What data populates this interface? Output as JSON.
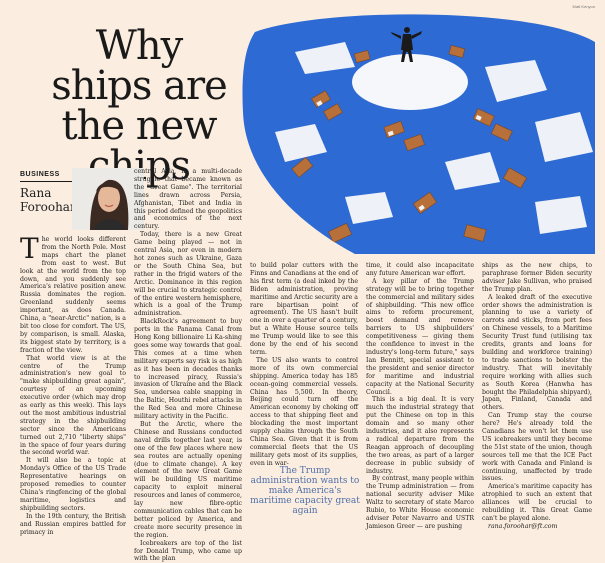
{
  "credit": "Matt Kenyon",
  "headline": "Why ships are the new chips",
  "section": "BUSINESS",
  "author": "Rana Foroohar",
  "illustration_icon": "ships-illustration",
  "colors": {
    "background": "#fbeee0",
    "quote": "#4f6ea8",
    "sea": "#2e6ad3"
  },
  "pull_quote": "The Trump administration wants to make America's maritime capacity great again",
  "col1": {
    "drop_cap": "T",
    "paragraphs": [
      "he world looks different from the North Pole. Most maps chart the planet from east to west. But look at the world from the top down, and you suddenly see America's relative position anew. Russia dominates the region. Greenland suddenly seems important, as does Canada. China, a \"near-Arctic\" nation, is a bit too close for comfort. The US, by comparison, is small. Alaska, its biggest state by territory, is a fraction of the view.",
      "That world view is at the centre of the Trump administration's new goal to \"make shipbuilding great again\", courtesy of an upcoming executive order (which may drop as early as this week). This lays out the most ambitious industrial strategy in the shipbuilding sector since the Americans turned out 2,710 \"liberty ships\" in the space of four years during the second world war.",
      "It will also be a topic at Monday's Office of the US Trade Representative hearings on proposed remedies to counter China's ringfencing of the global maritime, logistics and shipbuilding sectors.",
      "In the 19th century, the British and Russian empires battled for primacy in"
    ]
  },
  "col2": {
    "paragraphs": [
      "central Asia, in a multi-decade struggle that became known as the \"Great Game\". The territorial lines drawn across Persia, Afghanistan, Tibet and India in this period defined the geopolitics and economics of the next century.",
      "Today, there is a new Great Game being played — not in central Asia, nor even in modern hot zones such as Ukraine, Gaza or the South China Sea, but rather in the frigid waters of the Arctic. Dominance in this region will be crucial to strategic control of the entire western hemisphere, which is a goal of the Trump administration.",
      "BlackRock's agreement to buy ports in the Panama Canal from Hong Kong billionaire Li Ka-shing goes some way towards that goal. This comes at a time when military experts say risk is as high as it has been in decades thanks to increased piracy, Russia's invasion of Ukraine and the Black Sea, undersea cable snapping in the Baltic, Houthi rebel attacks in the Red Sea and more Chinese military activity in the Pacific.",
      "But the Arctic, where the Chinese and Russians conducted naval drills together last year, is one of the few places where new sea routes are actually opening (due to climate change). A key element of the new Great Game will be building US maritime capacity to exploit mineral resources and lanes of commerce, lay new fibre-optic communication cables that can be better policed by America, and create more security presence in the region.",
      "Icebreakers are top of the list for Donald Trump, who came up with the plan"
    ]
  },
  "col3": {
    "paragraphs": [
      "to build polar cutters with the Finns and Canadians at the end of his first term (a deal inked by the Biden administration, proving maritime and Arctic security are a rare bipartisan point of agreement). The US hasn't built one in over a quarter of a century, but a White House source tells me Trump would like to see this done by the end of his second term.",
      "The US also wants to control more of its own commercial shipping. America today has 185 ocean-going commercial vessels. China has 5,500. In theory, Beijing could turn off the American economy by choking off access to that shipping fleet and blockading the most important supply chains through the South China Sea. Given that it is from commercial fleets that the US military gets most of its supplies, even in war-"
    ]
  },
  "col4": {
    "paragraphs": [
      "time, it could also incapacitate any future American war effort.",
      "A key pillar of the Trump strategy will be to bring together the commercial and military sides of shipbuilding. \"This new office aims to reform procurement, boost demand and remove barriers to US shipbuilders' competitiveness — giving them the confidence to invest in the industry's long-term future,\" says Ian Bennitt, special assistant to the president and senior director for maritime and industrial capacity at the National Security Council.",
      "This is a big deal. It is very much the industrial strategy that put the Chinese on top in this domain and so many other industries, and it also represents a radical departure from the Reagan approach of decoupling the two areas, as part of a larger decrease in public subsidy of industry.",
      "By contrast, many people within the Trump administration — from national security adviser Mike Waltz to secretary of state Marco Rubio, to White House economic adviser Peter Navarro and USTR Jamieson Greer — are pushing"
    ]
  },
  "col5": {
    "paragraphs": [
      "ships as the new chips, to paraphrase former Biden security adviser Jake Sullivan, who praised the Trump plan.",
      "A leaked draft of the executive order shows the administration is planning to use a variety of carrots and sticks, from port fees on Chinese vessels, to a Maritime Security Trust fund (utilising tax credits, grants and loans for building and workforce training) to trade sanctions to bolster the industry. That will inevitably require working with allies such as South Korea (Hanwha has bought the Philadelphia shipyard), Japan, Finland, Canada and others.",
      "Can Trump stay the course here? He's already told the Canadians he won't let them use US icebreakers until they become the 51st state of the union, though sources tell me that the ICE Pact work with Canada and Finland is continuing, unaffected by trade issues.",
      "America's maritime capacity has atrophied to such an extent that alliances will be crucial to rebuilding it. This Great Game can't be played alone.",
      "rana.foroohar@ft.com"
    ]
  }
}
